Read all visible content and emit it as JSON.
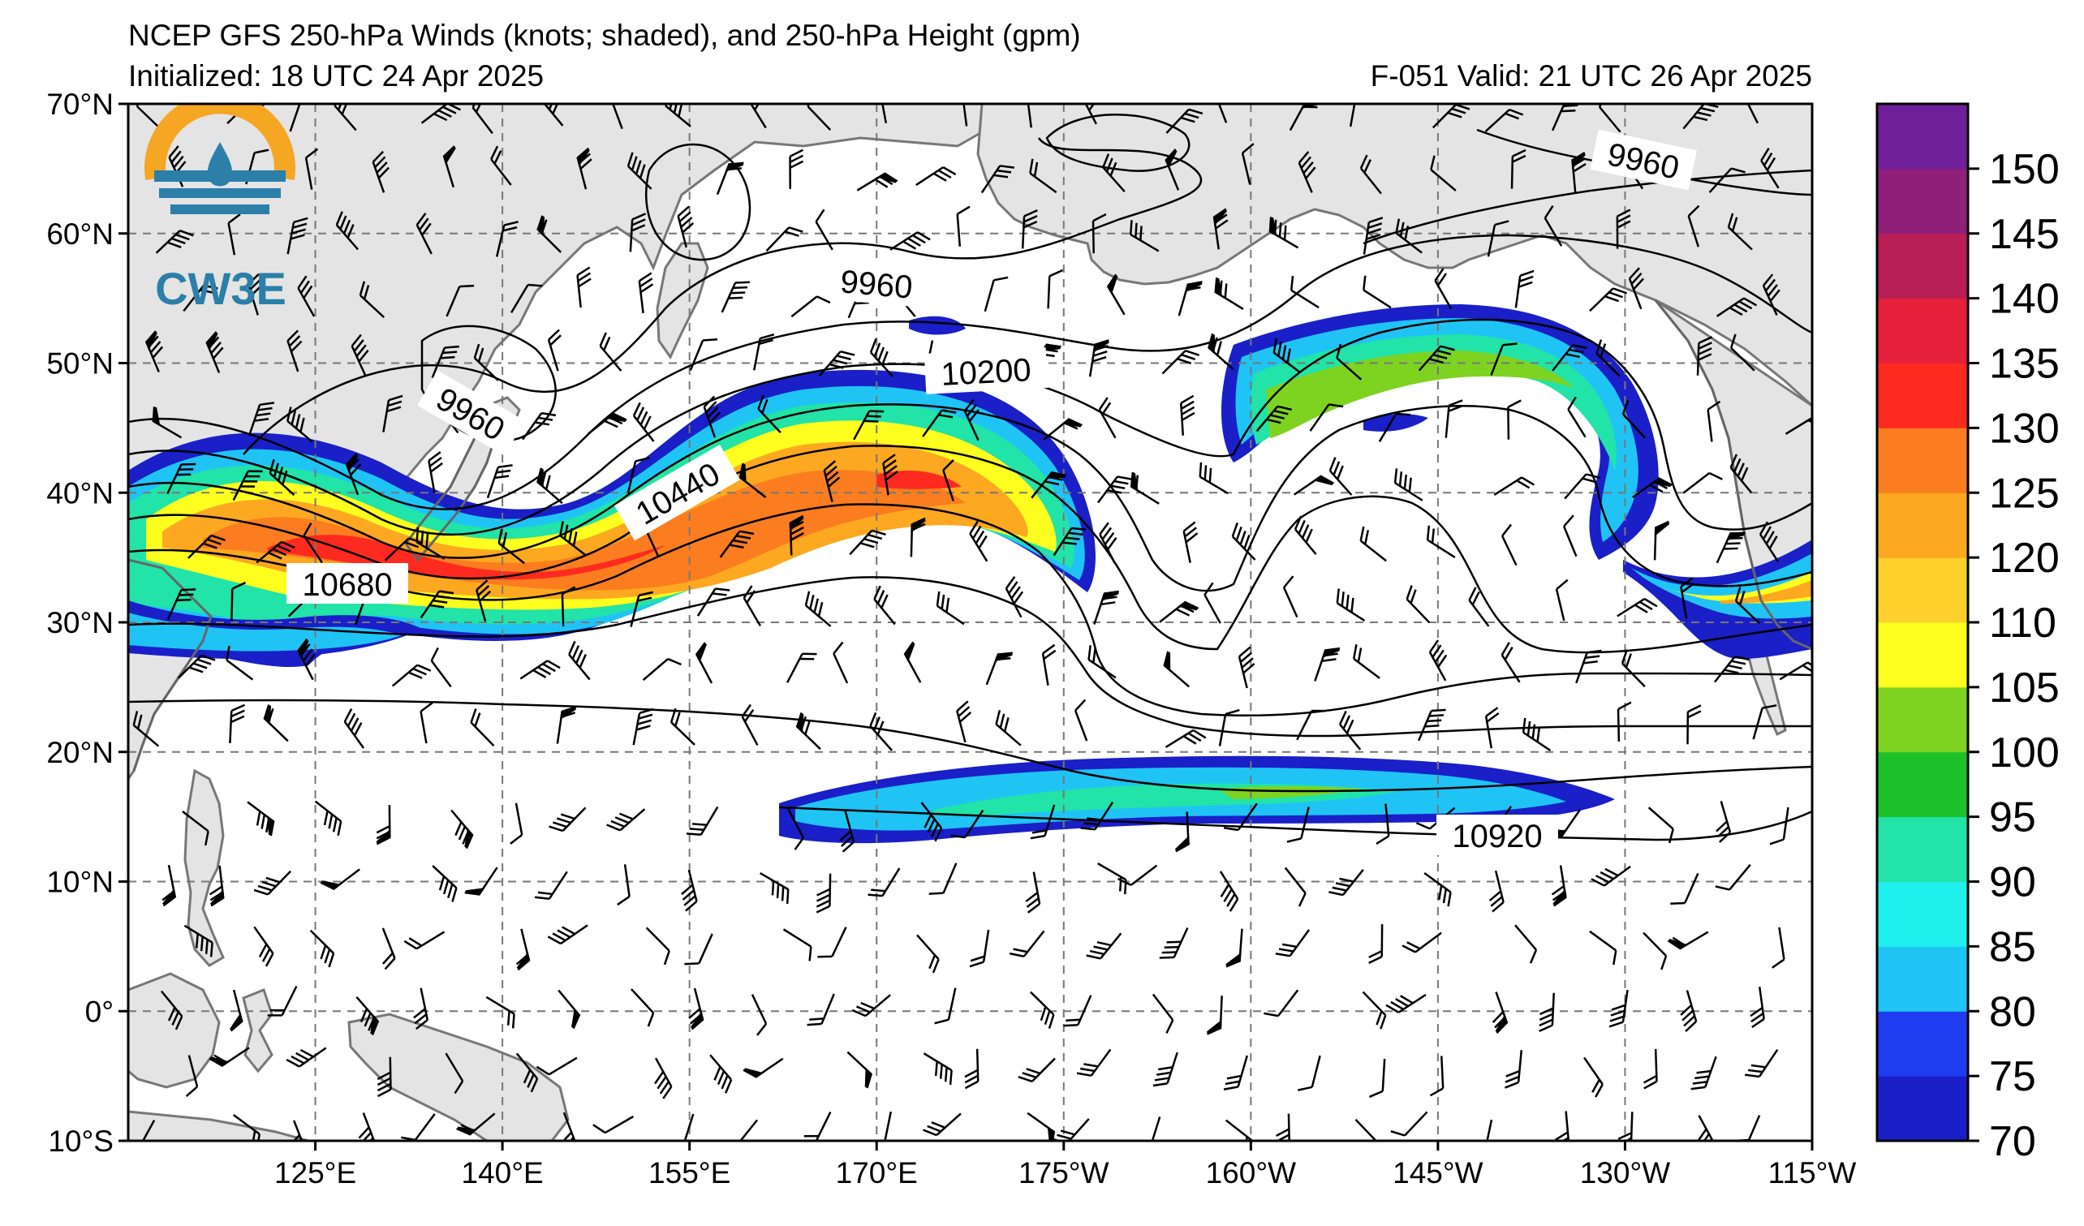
{
  "header": {
    "title": "NCEP GFS 250-hPa Winds (knots; shaded), and 250-hPa Height (gpm)",
    "initialized": "Initialized: 18 UTC 24 Apr 2025",
    "valid": "F-051  Valid: 21 UTC 26 Apr 2025"
  },
  "logo": {
    "text": "CW3E",
    "ring_color": "#f5a623",
    "wave_color": "#2b7fa8"
  },
  "map": {
    "projection": "equirectangular",
    "lon_range": [
      110,
      245
    ],
    "lat_range": [
      -10,
      70
    ],
    "lat_ticks": [
      {
        "value": 70,
        "label": "70°N"
      },
      {
        "value": 60,
        "label": "60°N"
      },
      {
        "value": 50,
        "label": "50°N"
      },
      {
        "value": 40,
        "label": "40°N"
      },
      {
        "value": 30,
        "label": "30°N"
      },
      {
        "value": 20,
        "label": "20°N"
      },
      {
        "value": 10,
        "label": "10°N"
      },
      {
        "value": 0,
        "label": "0°"
      },
      {
        "value": -10,
        "label": "10°S"
      }
    ],
    "lon_ticks": [
      {
        "value": 125,
        "label": "125°E"
      },
      {
        "value": 140,
        "label": "140°E"
      },
      {
        "value": 155,
        "label": "155°E"
      },
      {
        "value": 170,
        "label": "170°E"
      },
      {
        "value": 185,
        "label": "175°W"
      },
      {
        "value": 200,
        "label": "160°W"
      },
      {
        "value": 215,
        "label": "145°W"
      },
      {
        "value": 230,
        "label": "130°W"
      },
      {
        "value": 245,
        "label": "115°W"
      }
    ],
    "land_color": "#e4e4e4",
    "coast_color": "#777777"
  },
  "height_contours": [
    {
      "value": 9960,
      "label": "9960"
    },
    {
      "value": 10200,
      "label": "10200"
    },
    {
      "value": 10440,
      "label": "10440"
    },
    {
      "value": 10680,
      "label": "10680"
    },
    {
      "value": 10920,
      "label": "10920"
    }
  ],
  "colorbar": {
    "units": "knots",
    "levels": [
      {
        "value": 70,
        "label": "70",
        "color": "#1a1fc8"
      },
      {
        "value": 75,
        "label": "75",
        "color": "#1f3cf0"
      },
      {
        "value": 80,
        "label": "80",
        "color": "#1fc4f5"
      },
      {
        "value": 85,
        "label": "85",
        "color": "#1ff0ee"
      },
      {
        "value": 90,
        "label": "90",
        "color": "#22e3a8"
      },
      {
        "value": 95,
        "label": "95",
        "color": "#1dc22a"
      },
      {
        "value": 100,
        "label": "100",
        "color": "#7ed321"
      },
      {
        "value": 105,
        "label": "105",
        "color": "#ffff1f"
      },
      {
        "value": 110,
        "label": "110",
        "color": "#fed02b"
      },
      {
        "value": 120,
        "label": "120",
        "color": "#fca821"
      },
      {
        "value": 125,
        "label": "125",
        "color": "#fb7d1f"
      },
      {
        "value": 130,
        "label": "130",
        "color": "#fe2a1f"
      },
      {
        "value": 135,
        "label": "135",
        "color": "#e61f3a"
      },
      {
        "value": 140,
        "label": "140",
        "color": "#b81f55"
      },
      {
        "value": 145,
        "label": "145",
        "color": "#8f1f78"
      },
      {
        "value": 150,
        "label": "150",
        "color": "#6f1f9a"
      }
    ]
  }
}
